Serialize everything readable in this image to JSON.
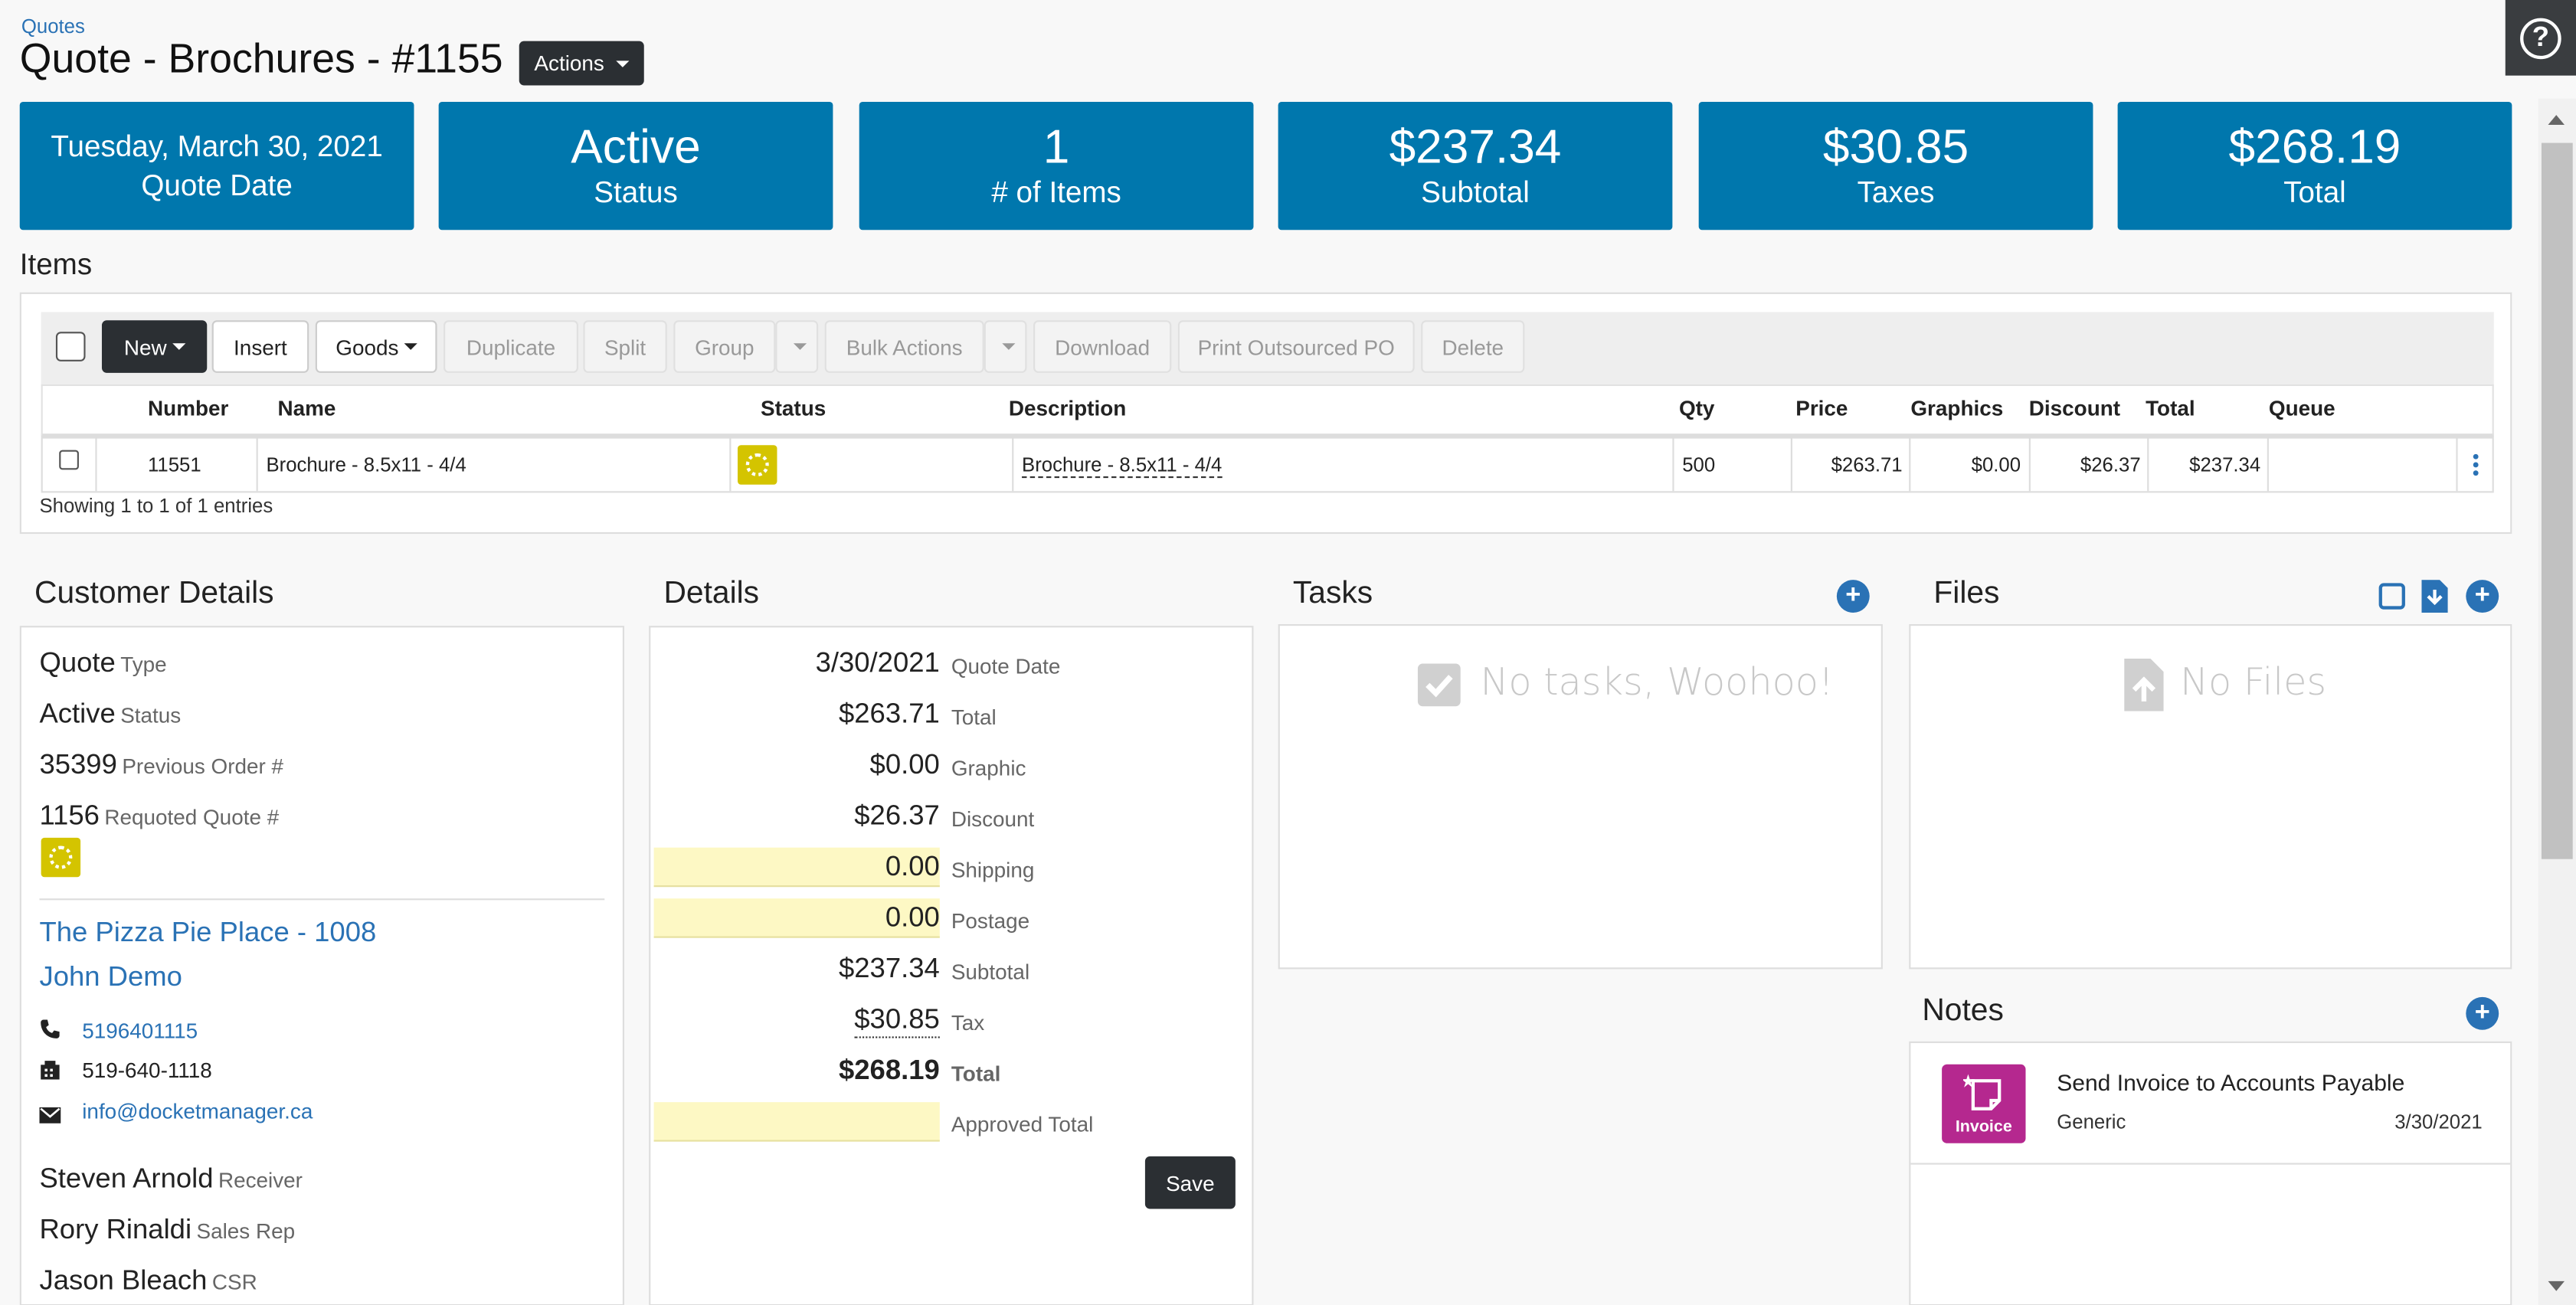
{
  "breadcrumb": "Quotes",
  "title": "Quote - Brochures - #1155",
  "actions_label": "Actions",
  "help_icon": "?",
  "tiles": {
    "date": "Tuesday, March 30, 2021",
    "date_label": "Quote Date",
    "status": "Active",
    "status_label": "Status",
    "items": "1",
    "items_label": "# of Items",
    "subtotal": "$237.34",
    "subtotal_label": "Subtotal",
    "taxes": "$30.85",
    "taxes_label": "Taxes",
    "total": "$268.19",
    "total_label": "Total"
  },
  "items_heading": "Items",
  "toolbar": {
    "new": "New",
    "insert": "Insert",
    "goods": "Goods",
    "duplicate": "Duplicate",
    "split": "Split",
    "group": "Group",
    "bulk": "Bulk Actions",
    "download": "Download",
    "print_po": "Print Outsourced PO",
    "delete": "Delete"
  },
  "columns": {
    "number": "Number",
    "name": "Name",
    "status": "Status",
    "description": "Description",
    "qty": "Qty",
    "price": "Price",
    "graphics": "Graphics",
    "discount": "Discount",
    "total": "Total",
    "queue": "Queue"
  },
  "row": {
    "number": "11551",
    "name": "Brochure - 8.5x11 - 4/4",
    "description": "Brochure - 8.5x11 - 4/4",
    "qty": "500",
    "price": "$263.71",
    "graphics": "$0.00",
    "discount": "$26.37",
    "total": "$237.34"
  },
  "showing": "Showing 1 to 1 of 1 entries",
  "customer": {
    "heading": "Customer Details",
    "type_val": "Quote",
    "type_lab": "Type",
    "status_val": "Active",
    "status_lab": "Status",
    "prev_val": "35399",
    "prev_lab": "Previous Order #",
    "req_val": "1156",
    "req_lab": "Requoted Quote #",
    "company": "The Pizza Pie Place - 1008",
    "contact": "John Demo",
    "phone": "5196401115",
    "fax": "519-640-1118",
    "email": "info@docketmanager.ca",
    "receiver_val": "Steven Arnold",
    "receiver_lab": "Receiver",
    "sales_val": "Rory Rinaldi",
    "sales_lab": "Sales Rep",
    "csr_val": "Jason Bleach",
    "csr_lab": "CSR"
  },
  "details": {
    "heading": "Details",
    "rows": [
      {
        "val": "3/30/2021",
        "lab": "Quote Date"
      },
      {
        "val": "$263.71",
        "lab": "Total"
      },
      {
        "val": "$0.00",
        "lab": "Graphic"
      },
      {
        "val": "$26.37",
        "lab": "Discount"
      },
      {
        "val": "0.00",
        "lab": "Shipping"
      },
      {
        "val": "0.00",
        "lab": "Postage"
      },
      {
        "val": "$237.34",
        "lab": "Subtotal"
      },
      {
        "val": "$30.85",
        "lab": "Tax"
      },
      {
        "val": "$268.19",
        "lab": "Total"
      },
      {
        "val": "",
        "lab": "Approved Total"
      }
    ],
    "save": "Save"
  },
  "tasks": {
    "heading": "Tasks",
    "empty": "No tasks, Woohoo!"
  },
  "files": {
    "heading": "Files",
    "empty": "No Files"
  },
  "notes": {
    "heading": "Notes",
    "badge": "Invoice",
    "title": "Send Invoice to Accounts Payable",
    "type": "Generic",
    "date": "3/30/2021"
  },
  "colors": {
    "tile_blue": "#0077ad",
    "link_blue": "#2a72b5",
    "status_yellow": "#d4c400",
    "note_magenta": "#b5288f"
  }
}
